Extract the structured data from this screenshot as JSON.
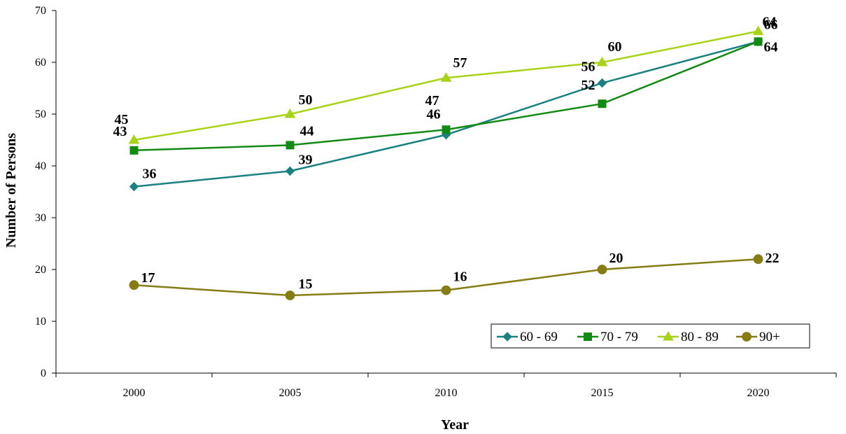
{
  "chart_data": {
    "type": "line",
    "title": "",
    "xlabel": "Year",
    "ylabel": "Number of Persons",
    "x": [
      "2000",
      "2005",
      "2010",
      "2015",
      "2020"
    ],
    "ylim": [
      0,
      70
    ],
    "y_ticks": [
      "0",
      "10",
      "20",
      "30",
      "40",
      "50",
      "60",
      "70"
    ],
    "grid": false,
    "legend_position": "bottom-right",
    "series": [
      {
        "name": "60 - 69",
        "values": [
          36,
          39,
          46,
          56,
          64
        ],
        "labels": [
          "36",
          "39",
          "46",
          "56",
          "64"
        ],
        "color": "#1a8080",
        "marker": "diamond"
      },
      {
        "name": "70 - 79",
        "values": [
          43,
          44,
          47,
          52,
          64
        ],
        "labels": [
          "43",
          "44",
          "47",
          "52",
          "64"
        ],
        "color": "#138a13",
        "marker": "square"
      },
      {
        "name": "80 - 89",
        "values": [
          45,
          50,
          57,
          60,
          66
        ],
        "labels": [
          "45",
          "50",
          "57",
          "60",
          "66"
        ],
        "color": "#a8d318",
        "marker": "triangle"
      },
      {
        "name": "90+",
        "values": [
          17,
          15,
          16,
          20,
          22
        ],
        "labels": [
          "17",
          "15",
          "16",
          "20",
          "22"
        ],
        "color": "#857d14",
        "marker": "circle"
      }
    ]
  }
}
